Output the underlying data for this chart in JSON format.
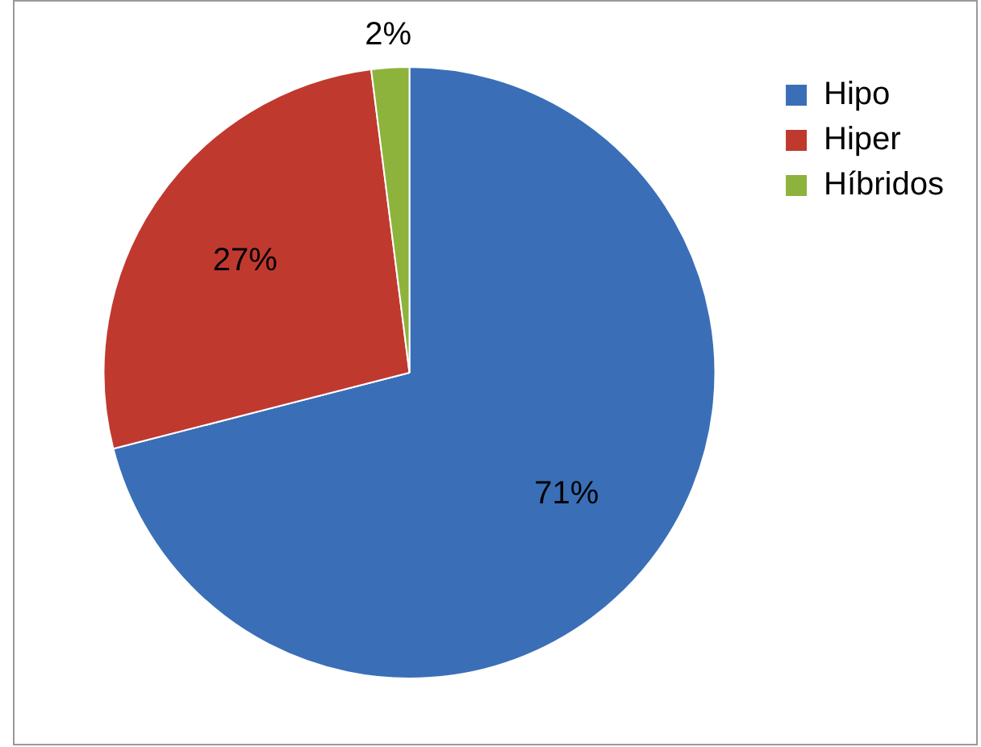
{
  "chart_data": {
    "type": "pie",
    "categories": [
      "Hipo",
      "Hiper",
      "Híbridos"
    ],
    "values": [
      71,
      27,
      2
    ],
    "colors": [
      "#3a6fb7",
      "#c0392f",
      "#8db33c"
    ],
    "value_labels": [
      "71%",
      "27%",
      "2%"
    ],
    "legend": "top right"
  }
}
